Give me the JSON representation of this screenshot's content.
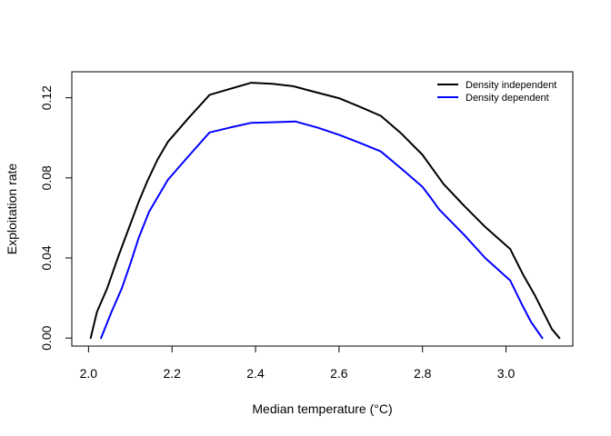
{
  "chart_data": {
    "type": "line",
    "title": "",
    "xlabel": "Median temperature (°C)",
    "ylabel": "Exploitation rate",
    "xlim": [
      1.96,
      3.16
    ],
    "ylim": [
      -0.004,
      0.133
    ],
    "x_ticks": [
      2.0,
      2.2,
      2.4,
      2.6,
      2.8,
      3.0
    ],
    "x_tick_labels": [
      "2.0",
      "2.2",
      "2.4",
      "2.6",
      "2.8",
      "3.0"
    ],
    "y_ticks": [
      0.0,
      0.04,
      0.08,
      0.12
    ],
    "y_tick_labels": [
      "0.00",
      "0.04",
      "0.08",
      "0.12"
    ],
    "grid": false,
    "legend_position": "top-right",
    "series": [
      {
        "name": "Density independent",
        "color": "#000000",
        "points": [
          [
            2.005,
            0.0
          ],
          [
            2.02,
            0.013
          ],
          [
            2.045,
            0.025
          ],
          [
            2.07,
            0.04
          ],
          [
            2.095,
            0.054
          ],
          [
            2.12,
            0.068
          ],
          [
            2.14,
            0.078
          ],
          [
            2.165,
            0.089
          ],
          [
            2.19,
            0.098
          ],
          [
            2.24,
            0.11
          ],
          [
            2.29,
            0.1215
          ],
          [
            2.34,
            0.1245
          ],
          [
            2.39,
            0.1275
          ],
          [
            2.44,
            0.127
          ],
          [
            2.49,
            0.1258
          ],
          [
            2.54,
            0.123
          ],
          [
            2.6,
            0.1198
          ],
          [
            2.65,
            0.1155
          ],
          [
            2.7,
            0.111
          ],
          [
            2.75,
            0.102
          ],
          [
            2.8,
            0.0915
          ],
          [
            2.85,
            0.077
          ],
          [
            2.9,
            0.066
          ],
          [
            2.95,
            0.0555
          ],
          [
            3.01,
            0.0445
          ],
          [
            3.04,
            0.032
          ],
          [
            3.07,
            0.021
          ],
          [
            3.11,
            0.0045
          ],
          [
            3.128,
            0.0
          ]
        ]
      },
      {
        "name": "Density dependent",
        "color": "#0000ff",
        "points": [
          [
            2.03,
            0.0
          ],
          [
            2.055,
            0.013
          ],
          [
            2.08,
            0.025
          ],
          [
            2.1,
            0.037
          ],
          [
            2.12,
            0.05
          ],
          [
            2.145,
            0.063
          ],
          [
            2.19,
            0.079
          ],
          [
            2.24,
            0.091
          ],
          [
            2.29,
            0.1027
          ],
          [
            2.34,
            0.1052
          ],
          [
            2.39,
            0.1075
          ],
          [
            2.44,
            0.1078
          ],
          [
            2.495,
            0.1082
          ],
          [
            2.55,
            0.105
          ],
          [
            2.6,
            0.1015
          ],
          [
            2.65,
            0.0975
          ],
          [
            2.7,
            0.0932
          ],
          [
            2.75,
            0.0845
          ],
          [
            2.8,
            0.0755
          ],
          [
            2.82,
            0.07
          ],
          [
            2.84,
            0.0642
          ],
          [
            2.9,
            0.0515
          ],
          [
            2.95,
            0.04
          ],
          [
            3.01,
            0.0288
          ],
          [
            3.04,
            0.016
          ],
          [
            3.06,
            0.008
          ],
          [
            3.087,
            0.0
          ]
        ]
      }
    ]
  }
}
